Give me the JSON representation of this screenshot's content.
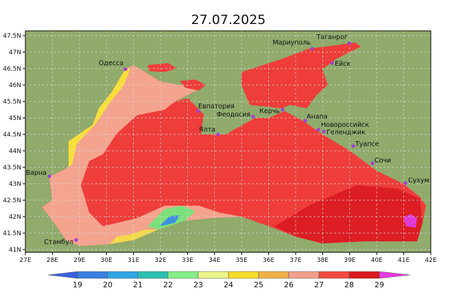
{
  "header": {
    "title": "27.07.2025"
  },
  "map": {
    "lon_labels": [
      "27E",
      "28E",
      "29E",
      "30E",
      "31E",
      "32E",
      "33E",
      "34E",
      "35E",
      "36E",
      "37E",
      "38E",
      "39E",
      "40E",
      "41E",
      "42E"
    ],
    "lat_labels": [
      "47.5N",
      "47N",
      "46.5N",
      "46N",
      "45.5N",
      "45N",
      "44.5N",
      "44N",
      "43.5N",
      "43N",
      "42.5N",
      "42N",
      "41.5N",
      "41N"
    ],
    "cities": [
      "Одесса",
      "Мариуполь",
      "Таганрог",
      "Ейск",
      "Евпатория",
      "Феодосия",
      "Керчь",
      "Ялта",
      "Анапа",
      "Новороссийск",
      "Геленджик",
      "Туапсе",
      "Сочи",
      "Сухум",
      "Варна",
      "Стамбул"
    ]
  },
  "colorbar": {
    "labels": [
      19,
      20,
      21,
      22,
      23,
      24,
      25,
      26,
      27,
      28,
      29
    ]
  }
}
